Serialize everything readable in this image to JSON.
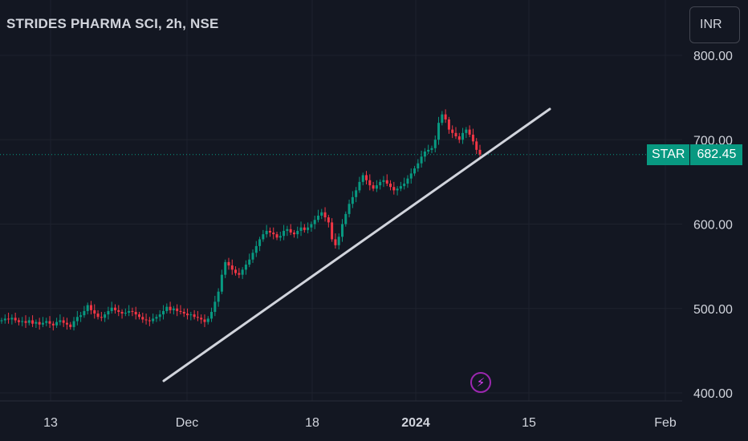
{
  "header": {
    "title": "STRIDES PHARMA SCI, 2h, NSE"
  },
  "currency": {
    "label": "INR"
  },
  "price_tag": {
    "symbol": "STAR",
    "value": "682.45"
  },
  "colors": {
    "background": "#131722",
    "up": "#089981",
    "down": "#f23645",
    "trendline": "#d1d4dc",
    "grid": "#1e222d"
  },
  "icons": {
    "event_marker": "lightning-icon"
  },
  "chart_data": {
    "type": "candlestick",
    "title": "STRIDES PHARMA SCI, 2h, NSE",
    "y_ticks": [
      "800.00",
      "700.00",
      "600.00",
      "500.00",
      "400.00"
    ],
    "x_ticks": [
      {
        "label": "13",
        "bold": false
      },
      {
        "label": "Dec",
        "bold": false
      },
      {
        "label": "18",
        "bold": false
      },
      {
        "label": "2024",
        "bold": true
      },
      {
        "label": "15",
        "bold": false
      },
      {
        "label": "Feb",
        "bold": false
      }
    ],
    "ylim": [
      390,
      840
    ],
    "current_price": 682.45,
    "series_closes": [
      486,
      488,
      487,
      489,
      486,
      484,
      485,
      483,
      486,
      482,
      484,
      481,
      483,
      485,
      482,
      480,
      484,
      486,
      483,
      481,
      478,
      485,
      490,
      492,
      497,
      504,
      498,
      494,
      490,
      489,
      493,
      497,
      501,
      498,
      496,
      494,
      495,
      497,
      496,
      493,
      490,
      487,
      486,
      485,
      488,
      490,
      493,
      497,
      502,
      498,
      500,
      497,
      496,
      494,
      492,
      493,
      490,
      489,
      487,
      484,
      488,
      496,
      508,
      520,
      540,
      555,
      551,
      546,
      542,
      540,
      546,
      552,
      558,
      566,
      574,
      582,
      588,
      592,
      590,
      588,
      584,
      586,
      592,
      594,
      590,
      588,
      592,
      596,
      593,
      596,
      600,
      605,
      610,
      614,
      608,
      602,
      582,
      575,
      585,
      600,
      612,
      624,
      632,
      640,
      650,
      658,
      652,
      646,
      642,
      646,
      650,
      652,
      648,
      644,
      640,
      642,
      645,
      648,
      654,
      660,
      666,
      672,
      680,
      686,
      688,
      690,
      700,
      720,
      730,
      724,
      712,
      708,
      704,
      700,
      708,
      712,
      706,
      698,
      688,
      682.45
    ]
  }
}
